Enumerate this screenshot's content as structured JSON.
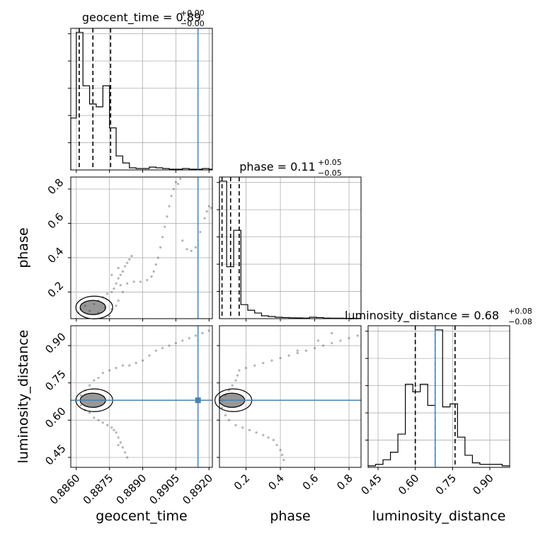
{
  "chart_data": {
    "type": "corner",
    "truth_color": "#4682b4",
    "quantile_color": "#000000",
    "parameters": [
      {
        "name": "geocent_time",
        "title_prefix": "geocent_time = 0.89",
        "title_sup": "+0.00",
        "title_sub": "−0.00",
        "xlabel": "geocent_time",
        "range": [
          0.88575,
          0.89215
        ],
        "ticks": [
          0.886,
          0.8875,
          0.889,
          0.8905,
          0.892
        ],
        "tick_labels": [
          "0.8860",
          "0.8875",
          "0.8890",
          "0.8905",
          "0.8920"
        ],
        "truth": 0.8915,
        "quantiles": [
          0.88613,
          0.88675,
          0.88755
        ],
        "hist_bins": [
          0.88575,
          0.886,
          0.8863,
          0.8866,
          0.8869,
          0.8872,
          0.8875,
          0.8878,
          0.8881,
          0.8884,
          0.8887,
          0.889,
          0.8893,
          0.8896,
          0.8899,
          0.8902,
          0.8905,
          0.8908,
          0.8911,
          0.8914,
          0.8917,
          0.892,
          0.89215
        ],
        "hist_values": [
          0.37,
          0.98,
          0.6,
          0.47,
          0.45,
          0.6,
          0.3,
          0.1,
          0.05,
          0.015,
          0.01,
          0.01,
          0.02,
          0.015,
          0.01,
          0.005,
          0.005,
          0.01,
          0.005,
          0.005,
          0.01,
          0.005
        ]
      },
      {
        "name": "phase",
        "title_prefix": "phase = 0.11",
        "title_sup": "+0.05",
        "title_sub": "−0.05",
        "xlabel": "phase",
        "ylabel": "phase",
        "range": [
          0.045,
          0.87
        ],
        "ticks": [
          0.2,
          0.4,
          0.6,
          0.8
        ],
        "tick_labels": [
          "0.2",
          "0.4",
          "0.6",
          "0.8"
        ],
        "quantiles": [
          0.06,
          0.11,
          0.16
        ],
        "hist_bins": [
          0.045,
          0.087,
          0.128,
          0.17,
          0.21,
          0.25,
          0.29,
          0.33,
          0.37,
          0.41,
          0.45,
          0.49,
          0.53,
          0.57,
          0.61,
          0.65,
          0.69,
          0.73,
          0.77,
          0.81,
          0.87
        ],
        "hist_values": [
          0.98,
          0.37,
          0.63,
          0.1,
          0.06,
          0.04,
          0.02,
          0.015,
          0.01,
          0.008,
          0.006,
          0.005,
          0.004,
          0.01,
          0.008,
          0.004,
          0.003,
          0.003,
          0.002,
          0.002
        ]
      },
      {
        "name": "luminosity_distance",
        "title_prefix": "luminosity_distance = 0.68",
        "title_sup": "+0.08",
        "title_sub": "−0.08",
        "xlabel": "luminosity_distance",
        "ylabel": "luminosity_distance",
        "range": [
          0.41,
          0.98
        ],
        "ticks": [
          0.45,
          0.6,
          0.75,
          0.9
        ],
        "tick_labels": [
          "0.45",
          "0.60",
          "0.75",
          "0.90"
        ],
        "truth": 0.68,
        "quantiles": [
          0.6,
          0.68,
          0.76
        ],
        "hist_bins": [
          0.41,
          0.44,
          0.47,
          0.5,
          0.53,
          0.56,
          0.59,
          0.62,
          0.65,
          0.68,
          0.71,
          0.74,
          0.77,
          0.8,
          0.83,
          0.86,
          0.89,
          0.92,
          0.95,
          0.98
        ],
        "hist_values": [
          0.01,
          0.02,
          0.05,
          0.1,
          0.22,
          0.55,
          0.5,
          0.55,
          0.41,
          0.91,
          0.4,
          0.42,
          0.2,
          0.08,
          0.03,
          0.02,
          0.02,
          0.02,
          0.01
        ]
      }
    ],
    "pairs": [
      {
        "x": "geocent_time",
        "y": "phase",
        "truth_x": 0.8915,
        "samples": [
          [
            0.8861,
            0.08
          ],
          [
            0.8862,
            0.1
          ],
          [
            0.8864,
            0.12
          ],
          [
            0.8866,
            0.09
          ],
          [
            0.8868,
            0.13
          ],
          [
            0.887,
            0.15
          ],
          [
            0.8872,
            0.17
          ],
          [
            0.8874,
            0.19
          ],
          [
            0.8876,
            0.2
          ],
          [
            0.8877,
            0.22
          ],
          [
            0.8878,
            0.25
          ],
          [
            0.8879,
            0.28
          ],
          [
            0.888,
            0.3
          ],
          [
            0.8881,
            0.32
          ],
          [
            0.8882,
            0.35
          ],
          [
            0.8883,
            0.37
          ],
          [
            0.8884,
            0.39
          ],
          [
            0.8885,
            0.41
          ],
          [
            0.888,
            0.24
          ],
          [
            0.8883,
            0.25
          ],
          [
            0.8886,
            0.26
          ],
          [
            0.8889,
            0.26
          ],
          [
            0.8892,
            0.27
          ],
          [
            0.8894,
            0.29
          ],
          [
            0.8895,
            0.32
          ],
          [
            0.8896,
            0.36
          ],
          [
            0.8897,
            0.4
          ],
          [
            0.8898,
            0.46
          ],
          [
            0.8899,
            0.52
          ],
          [
            0.89,
            0.58
          ],
          [
            0.8901,
            0.64
          ],
          [
            0.8902,
            0.7
          ],
          [
            0.8903,
            0.76
          ],
          [
            0.8904,
            0.8
          ],
          [
            0.8905,
            0.84
          ],
          [
            0.8907,
            0.86
          ],
          [
            0.8906,
            0.83
          ],
          [
            0.8908,
            0.5
          ],
          [
            0.891,
            0.45
          ],
          [
            0.8912,
            0.44
          ],
          [
            0.8914,
            0.46
          ],
          [
            0.8918,
            0.63
          ],
          [
            0.8919,
            0.67
          ],
          [
            0.892,
            0.7
          ],
          [
            0.8921,
            0.69
          ],
          [
            0.8916,
            0.55
          ],
          [
            0.8876,
            0.1
          ],
          [
            0.8878,
            0.12
          ],
          [
            0.8875,
            0.06
          ],
          [
            0.887,
            0.08
          ],
          [
            0.8873,
            0.11
          ],
          [
            0.8879,
            0.15
          ],
          [
            0.8881,
            0.2
          ],
          [
            0.8876,
            0.3
          ],
          [
            0.8879,
            0.34
          ]
        ]
      },
      {
        "x": "geocent_time",
        "y": "luminosity_distance",
        "truth_x": 0.8915,
        "truth_y": 0.68,
        "samples": [
          [
            0.886,
            0.68
          ],
          [
            0.8862,
            0.7
          ],
          [
            0.8864,
            0.72
          ],
          [
            0.8866,
            0.74
          ],
          [
            0.8868,
            0.76
          ],
          [
            0.887,
            0.77
          ],
          [
            0.8872,
            0.79
          ],
          [
            0.8875,
            0.8
          ],
          [
            0.8878,
            0.81
          ],
          [
            0.8881,
            0.82
          ],
          [
            0.8884,
            0.82
          ],
          [
            0.8887,
            0.83
          ],
          [
            0.889,
            0.84
          ],
          [
            0.8893,
            0.86
          ],
          [
            0.8896,
            0.88
          ],
          [
            0.8899,
            0.89
          ],
          [
            0.8902,
            0.9
          ],
          [
            0.8905,
            0.91
          ],
          [
            0.8908,
            0.92
          ],
          [
            0.8911,
            0.93
          ],
          [
            0.8914,
            0.94
          ],
          [
            0.8917,
            0.95
          ],
          [
            0.892,
            0.96
          ],
          [
            0.8862,
            0.66
          ],
          [
            0.8864,
            0.64
          ],
          [
            0.8866,
            0.63
          ],
          [
            0.8868,
            0.61
          ],
          [
            0.887,
            0.6
          ],
          [
            0.8872,
            0.59
          ],
          [
            0.8874,
            0.58
          ],
          [
            0.8876,
            0.57
          ],
          [
            0.8878,
            0.55
          ],
          [
            0.8879,
            0.53
          ],
          [
            0.888,
            0.51
          ],
          [
            0.8881,
            0.49
          ],
          [
            0.8882,
            0.47
          ],
          [
            0.8883,
            0.45
          ],
          [
            0.8877,
            0.56
          ],
          [
            0.8879,
            0.5
          ]
        ]
      },
      {
        "x": "phase",
        "y": "luminosity_distance",
        "truth_y": 0.68,
        "samples": [
          [
            0.06,
            0.68
          ],
          [
            0.08,
            0.7
          ],
          [
            0.1,
            0.72
          ],
          [
            0.12,
            0.74
          ],
          [
            0.14,
            0.76
          ],
          [
            0.15,
            0.78
          ],
          [
            0.16,
            0.8
          ],
          [
            0.2,
            0.81
          ],
          [
            0.25,
            0.82
          ],
          [
            0.3,
            0.83
          ],
          [
            0.35,
            0.84
          ],
          [
            0.4,
            0.85
          ],
          [
            0.45,
            0.86
          ],
          [
            0.5,
            0.87
          ],
          [
            0.55,
            0.88
          ],
          [
            0.6,
            0.89
          ],
          [
            0.65,
            0.9
          ],
          [
            0.7,
            0.91
          ],
          [
            0.75,
            0.92
          ],
          [
            0.8,
            0.93
          ],
          [
            0.85,
            0.94
          ],
          [
            0.06,
            0.65
          ],
          [
            0.08,
            0.62
          ],
          [
            0.1,
            0.6
          ],
          [
            0.14,
            0.58
          ],
          [
            0.18,
            0.57
          ],
          [
            0.22,
            0.56
          ],
          [
            0.26,
            0.55
          ],
          [
            0.3,
            0.54
          ],
          [
            0.33,
            0.53
          ],
          [
            0.36,
            0.52
          ],
          [
            0.38,
            0.5
          ],
          [
            0.4,
            0.48
          ],
          [
            0.41,
            0.46
          ],
          [
            0.42,
            0.44
          ],
          [
            0.5,
            0.88
          ],
          [
            0.62,
            0.92
          ],
          [
            0.7,
            0.95
          ]
        ]
      }
    ]
  }
}
